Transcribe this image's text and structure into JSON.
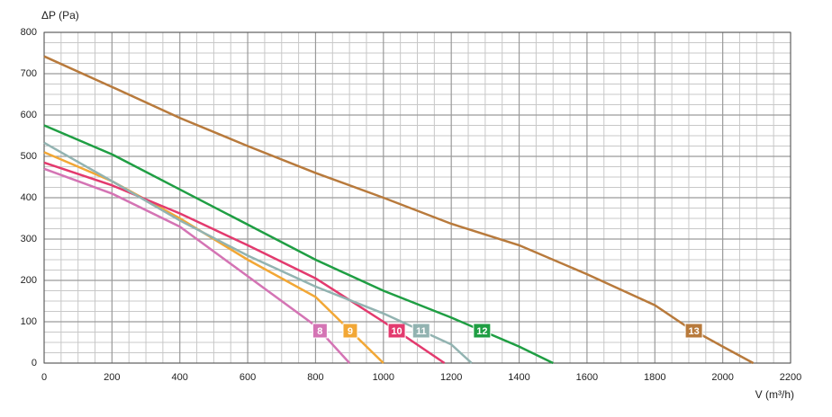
{
  "chart_data": {
    "type": "line",
    "y_label": "ΔP (Pa)",
    "x_label": "V (m³/h)",
    "xlim": [
      0,
      2200
    ],
    "xticks": [
      0,
      200,
      400,
      600,
      800,
      1000,
      1200,
      1400,
      1600,
      1800,
      2000,
      2200
    ],
    "ylim": [
      0,
      800
    ],
    "yticks": [
      0,
      100,
      200,
      300,
      400,
      500,
      600,
      700,
      800
    ],
    "grid": true,
    "series": [
      {
        "name": "8",
        "color": "#d474b4",
        "x": [
          0,
          200,
          400,
          600,
          800,
          900
        ],
        "values": [
          470,
          410,
          330,
          210,
          90,
          0
        ]
      },
      {
        "name": "9",
        "color": "#f2a735",
        "x": [
          0,
          200,
          400,
          600,
          800,
          1000
        ],
        "values": [
          510,
          440,
          350,
          250,
          160,
          0
        ]
      },
      {
        "name": "10",
        "color": "#e33a6e",
        "x": [
          0,
          200,
          400,
          600,
          800,
          1000,
          1180
        ],
        "values": [
          485,
          430,
          362,
          285,
          205,
          100,
          0
        ]
      },
      {
        "name": "11",
        "color": "#92b3b1",
        "x": [
          0,
          200,
          400,
          600,
          800,
          1000,
          1200,
          1260
        ],
        "values": [
          533,
          440,
          345,
          260,
          185,
          120,
          45,
          0
        ]
      },
      {
        "name": "12",
        "color": "#1f9e43",
        "x": [
          0,
          200,
          400,
          600,
          800,
          1000,
          1200,
          1400,
          1500
        ],
        "values": [
          575,
          505,
          420,
          335,
          250,
          175,
          110,
          40,
          0
        ]
      },
      {
        "name": "13",
        "color": "#b87a3c",
        "x": [
          0,
          200,
          400,
          600,
          800,
          1000,
          1200,
          1400,
          1600,
          1800,
          1900,
          2000,
          2090
        ],
        "values": [
          742,
          668,
          593,
          525,
          460,
          400,
          337,
          285,
          215,
          140,
          85,
          40,
          0
        ]
      }
    ]
  }
}
